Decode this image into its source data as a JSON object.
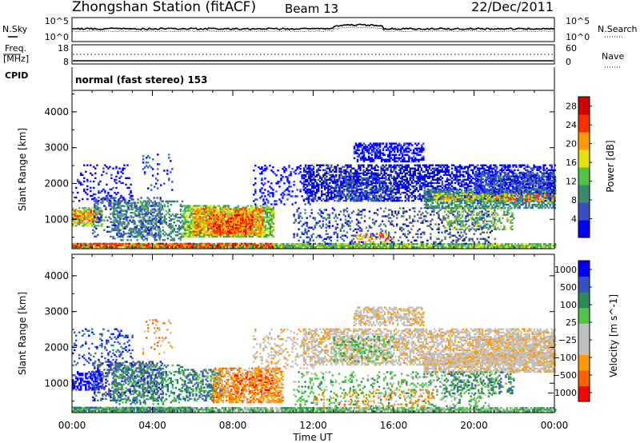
{
  "header": {
    "title": "Zhongshan Station (fitACF)",
    "beam": "Beam 13",
    "date": "22/Dec/2011"
  },
  "status_panels": {
    "noise_left_label": "N.Sky",
    "noise_left_ticks": [
      "10^5",
      "10^0"
    ],
    "noise_right_label": "N.Search",
    "noise_right_ticks": [
      "10^5",
      "10^0"
    ],
    "freq_label": "Freq.",
    "freq_unit": "[MHz]",
    "freq_ticks": [
      "18",
      "8"
    ],
    "nave_label": "Nave",
    "nave_ticks": [
      "60",
      "0"
    ],
    "cpid_label": "CPID",
    "cpid_text": "normal (fast stereo) 153"
  },
  "x_axis": {
    "label": "Time UT",
    "ticks": [
      "00:00",
      "04:00",
      "08:00",
      "12:00",
      "16:00",
      "20:00",
      "00:00"
    ],
    "range_hours": [
      0,
      24
    ]
  },
  "chart_data": [
    {
      "type": "heatmap",
      "panel": "power",
      "xlabel": "Time UT",
      "ylabel": "Slant Range [km]",
      "yticks": [
        "1000",
        "2000",
        "3000",
        "4000"
      ],
      "ylim": [
        180,
        4600
      ],
      "colorbar_label": "Power [dB]",
      "colorbar_ticks": [
        "4",
        "8",
        "12",
        "16",
        "20",
        "24",
        "28"
      ],
      "colorbar_range": [
        0,
        30
      ],
      "colors": [
        "#0000ff",
        "#3b4fc4",
        "#3a8a6e",
        "#52c248",
        "#e8e000",
        "#ff9a00",
        "#ff3000",
        "#d00000"
      ],
      "regions": [
        {
          "t0": 0.0,
          "t1": 24.0,
          "r0": 200,
          "r1": 330,
          "level": 3,
          "density": 0.9
        },
        {
          "t0": 0.0,
          "t1": 10.0,
          "r0": 210,
          "r1": 320,
          "level": 6,
          "density": 0.6
        },
        {
          "t0": 0.0,
          "t1": 1.5,
          "r0": 800,
          "r1": 1300,
          "level": 3,
          "density": 0.6
        },
        {
          "t0": 0.1,
          "t1": 1.3,
          "r0": 900,
          "r1": 1250,
          "level": 5,
          "density": 0.5
        },
        {
          "t0": 1.0,
          "t1": 4.5,
          "r0": 500,
          "r1": 1600,
          "level": 1,
          "density": 0.35
        },
        {
          "t0": 2.0,
          "t1": 5.5,
          "r0": 400,
          "r1": 1500,
          "level": 2,
          "density": 0.3
        },
        {
          "t0": 5.5,
          "t1": 10.0,
          "r0": 500,
          "r1": 1400,
          "level": 3,
          "density": 0.7
        },
        {
          "t0": 6.0,
          "t1": 9.5,
          "r0": 550,
          "r1": 1300,
          "level": 5,
          "density": 0.6
        },
        {
          "t0": 7.0,
          "t1": 9.0,
          "r0": 600,
          "r1": 1100,
          "level": 6,
          "density": 0.5
        },
        {
          "t0": 0.0,
          "t1": 3.0,
          "r0": 1500,
          "r1": 2500,
          "level": 0,
          "density": 0.15
        },
        {
          "t0": 3.5,
          "t1": 5.0,
          "r0": 1800,
          "r1": 2800,
          "level": 1,
          "density": 0.1
        },
        {
          "t0": 9.0,
          "t1": 12.0,
          "r0": 1400,
          "r1": 2500,
          "level": 0,
          "density": 0.2
        },
        {
          "t0": 11.5,
          "t1": 24.0,
          "r0": 1500,
          "r1": 2500,
          "level": 0,
          "density": 0.55
        },
        {
          "t0": 14.0,
          "t1": 17.5,
          "r0": 2600,
          "r1": 3100,
          "level": 0,
          "density": 0.55
        },
        {
          "t0": 13.0,
          "t1": 16.0,
          "r0": 1500,
          "r1": 2200,
          "level": 1,
          "density": 0.4
        },
        {
          "t0": 17.5,
          "t1": 24.0,
          "r0": 1300,
          "r1": 1800,
          "level": 2,
          "density": 0.6
        },
        {
          "t0": 18.0,
          "t1": 22.0,
          "r0": 1500,
          "r1": 1700,
          "level": 4,
          "density": 0.4
        },
        {
          "t0": 20.0,
          "t1": 24.0,
          "r0": 1700,
          "r1": 2300,
          "level": 1,
          "density": 0.5
        },
        {
          "t0": 21.0,
          "t1": 24.0,
          "r0": 1500,
          "r1": 1700,
          "level": 5,
          "density": 0.3
        },
        {
          "t0": 11.0,
          "t1": 21.0,
          "r0": 300,
          "r1": 1300,
          "level": 1,
          "density": 0.2
        },
        {
          "t0": 14.0,
          "t1": 16.0,
          "r0": 350,
          "r1": 600,
          "level": 5,
          "density": 0.3
        },
        {
          "t0": 18.5,
          "t1": 22.0,
          "r0": 700,
          "r1": 1300,
          "level": 3,
          "density": 0.3
        }
      ]
    },
    {
      "type": "heatmap",
      "panel": "velocity",
      "xlabel": "Time UT",
      "ylabel": "Slant Range [km]",
      "yticks": [
        "1000",
        "2000",
        "3000",
        "4000"
      ],
      "ylim": [
        180,
        4600
      ],
      "colorbar_label": "Velocity [m s^-1]",
      "colorbar_ticks": [
        "1000",
        "500",
        "100",
        "25",
        "−25",
        "−100",
        "−500",
        "−1000"
      ],
      "colorbar_range": [
        -1200,
        1200
      ],
      "colors": [
        "#ff0000",
        "#ff6000",
        "#ff9a00",
        "#c0c0c0",
        "#c0c0c0",
        "#52c248",
        "#2f8a5a",
        "#3b4fc4",
        "#0000ff"
      ],
      "regions": [
        {
          "t0": 0.0,
          "t1": 24.0,
          "r0": 200,
          "r1": 330,
          "level": 5,
          "density": 0.8
        },
        {
          "t0": 0.0,
          "t1": 6.0,
          "r0": 210,
          "r1": 320,
          "level": 6,
          "density": 0.6
        },
        {
          "t0": 0.0,
          "t1": 1.5,
          "r0": 800,
          "r1": 1300,
          "level": 8,
          "density": 0.6
        },
        {
          "t0": 1.0,
          "t1": 4.5,
          "r0": 500,
          "r1": 1600,
          "level": 7,
          "density": 0.35
        },
        {
          "t0": 2.0,
          "t1": 5.5,
          "r0": 400,
          "r1": 1500,
          "level": 6,
          "density": 0.3
        },
        {
          "t0": 5.5,
          "t1": 7.5,
          "r0": 500,
          "r1": 1400,
          "level": 6,
          "density": 0.5
        },
        {
          "t0": 7.0,
          "t1": 10.5,
          "r0": 450,
          "r1": 1400,
          "level": 2,
          "density": 0.6
        },
        {
          "t0": 8.0,
          "t1": 10.0,
          "r0": 700,
          "r1": 1200,
          "level": 1,
          "density": 0.3
        },
        {
          "t0": 0.0,
          "t1": 3.0,
          "r0": 1500,
          "r1": 2500,
          "level": 7,
          "density": 0.15
        },
        {
          "t0": 3.5,
          "t1": 5.0,
          "r0": 1800,
          "r1": 2800,
          "level": 2,
          "density": 0.1
        },
        {
          "t0": 9.0,
          "t1": 12.0,
          "r0": 1400,
          "r1": 2500,
          "level": 3,
          "density": 0.2
        },
        {
          "t0": 11.5,
          "t1": 24.0,
          "r0": 1500,
          "r1": 2500,
          "level": 3,
          "density": 0.55
        },
        {
          "t0": 14.0,
          "t1": 17.5,
          "r0": 2600,
          "r1": 3100,
          "level": 3,
          "density": 0.55
        },
        {
          "t0": 13.0,
          "t1": 16.0,
          "r0": 1600,
          "r1": 2300,
          "level": 5,
          "density": 0.25
        },
        {
          "t0": 17.5,
          "t1": 24.0,
          "r0": 1300,
          "r1": 1800,
          "level": 3,
          "density": 0.7
        },
        {
          "t0": 20.0,
          "t1": 24.0,
          "r0": 1700,
          "r1": 2300,
          "level": 3,
          "density": 0.5
        },
        {
          "t0": 11.0,
          "t1": 21.0,
          "r0": 300,
          "r1": 1300,
          "level": 5,
          "density": 0.2
        },
        {
          "t0": 12.0,
          "t1": 18.0,
          "r0": 300,
          "r1": 800,
          "level": 2,
          "density": 0.12
        },
        {
          "t0": 18.5,
          "t1": 22.0,
          "r0": 700,
          "r1": 1300,
          "level": 6,
          "density": 0.3
        }
      ]
    }
  ]
}
